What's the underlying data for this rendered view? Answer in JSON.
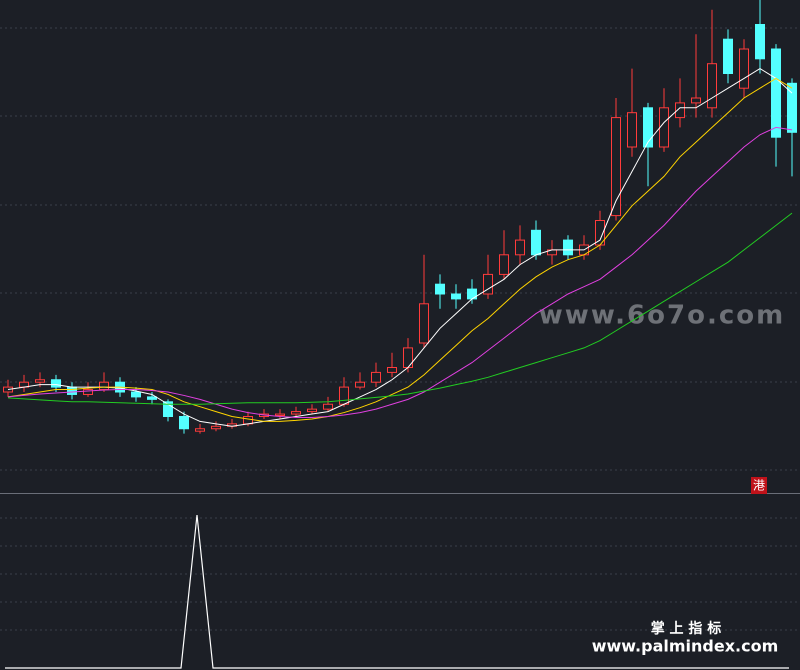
{
  "chart_data": {
    "type": "candlestick",
    "categories": [
      null,
      null,
      null,
      null,
      null,
      null,
      null,
      null,
      null,
      null,
      null,
      null,
      null,
      null,
      null,
      null,
      null,
      null,
      null,
      null,
      null,
      null,
      null,
      null,
      null,
      null,
      null,
      null,
      null,
      null,
      null,
      null,
      null,
      null,
      null,
      null,
      null,
      null,
      null,
      null,
      null,
      null,
      null,
      null,
      null,
      null,
      null,
      null,
      null,
      null
    ],
    "open": [
      20,
      21,
      22,
      22.5,
      21,
      19.5,
      20.5,
      22,
      20,
      19,
      18,
      15,
      12,
      12.5,
      13,
      13.5,
      15,
      15.2,
      15.5,
      16,
      16.5,
      17.5,
      21,
      22,
      24,
      25,
      30,
      42,
      40,
      41,
      40,
      44,
      48,
      53,
      48,
      51,
      48,
      50,
      56,
      70,
      78,
      70,
      76,
      79,
      78,
      92,
      82,
      95,
      90,
      83
    ],
    "high": [
      22.5,
      23.5,
      24,
      23.5,
      22,
      22,
      24,
      23,
      21,
      20,
      18.5,
      16,
      13.5,
      14,
      14.5,
      16,
      16.5,
      16.5,
      17,
      17.5,
      19,
      23,
      24,
      26,
      28,
      31,
      48,
      44,
      42,
      43,
      48,
      53,
      54,
      55,
      51,
      52,
      52,
      57,
      80,
      86,
      79,
      82,
      84,
      93,
      98,
      94,
      92,
      100,
      91,
      84
    ],
    "low": [
      19,
      20,
      21,
      20,
      18.5,
      19,
      20,
      19,
      18,
      17.5,
      14,
      11.5,
      11.5,
      12,
      12.5,
      13,
      14.5,
      14.5,
      15,
      15.5,
      16,
      17,
      20.5,
      21,
      23,
      24,
      29,
      37,
      37,
      38,
      39,
      43,
      46,
      47,
      46,
      47,
      47,
      49,
      55,
      68,
      62,
      69,
      74,
      76,
      76,
      83,
      80,
      85,
      66,
      64
    ],
    "close": [
      21,
      22,
      22.5,
      21,
      19.5,
      20.5,
      22,
      20,
      19,
      18.5,
      15,
      12.5,
      12.5,
      13,
      13.5,
      15,
      15.5,
      15.5,
      16,
      16.5,
      17.5,
      21,
      22,
      24,
      25,
      29,
      38,
      40,
      39,
      39,
      44,
      48,
      51,
      48,
      49,
      48,
      50,
      55,
      76,
      77,
      70,
      78,
      79,
      80,
      87,
      85,
      90,
      88,
      72,
      73
    ],
    "up_color": "#ff3b3b",
    "down_color": "#54ffff",
    "ylim": [
      0,
      100
    ],
    "series": [
      {
        "color": "#ffffff",
        "values": [
          20.5,
          21,
          21.5,
          21.5,
          21,
          21,
          21,
          20.8,
          20.2,
          19.5,
          17.5,
          15.5,
          14,
          13.5,
          13,
          13.5,
          14,
          14.5,
          15,
          15.5,
          16,
          17.5,
          19,
          20.5,
          22.5,
          25,
          29,
          33,
          36,
          39,
          41,
          43,
          46,
          48,
          49,
          49,
          49,
          51,
          59,
          65,
          71,
          75,
          78,
          78,
          80,
          82,
          84,
          86,
          84,
          81
        ]
      },
      {
        "color": "#ffd400",
        "values": [
          19,
          19.5,
          20,
          20.5,
          20.5,
          20.8,
          21,
          21,
          20.8,
          20.5,
          19.5,
          18,
          17,
          16,
          15,
          14.5,
          14,
          14,
          14.2,
          14.5,
          15,
          15.8,
          16.8,
          18,
          19.5,
          21,
          23.5,
          26.5,
          29.5,
          32.5,
          35,
          38,
          41,
          43.5,
          45.5,
          47,
          48,
          50,
          54,
          58,
          61,
          64,
          68,
          71,
          74,
          77,
          80,
          82,
          84,
          82
        ]
      },
      {
        "color": "#e040e0",
        "values": [
          19,
          19.3,
          19.6,
          19.8,
          20,
          20.2,
          20.4,
          20.5,
          20.5,
          20.3,
          20,
          19.3,
          18.5,
          17.5,
          16.5,
          15.8,
          15.3,
          15,
          14.8,
          14.8,
          15,
          15.3,
          15.8,
          16.5,
          17.5,
          18.5,
          20,
          22,
          24,
          26,
          28.5,
          31,
          33.5,
          36,
          38,
          40,
          41.5,
          43,
          45.5,
          48,
          51,
          54,
          57.5,
          61,
          64,
          67,
          70,
          72.5,
          74,
          73.5
        ]
      },
      {
        "color": "#22cc22",
        "values": [
          18.8,
          18.6,
          18.4,
          18.2,
          18,
          18,
          17.9,
          17.8,
          17.7,
          17.6,
          17.5,
          17.5,
          17.5,
          17.6,
          17.7,
          17.8,
          17.8,
          17.8,
          17.8,
          17.9,
          18,
          18.3,
          18.6,
          18.9,
          19.2,
          19.6,
          20.2,
          20.8,
          21.5,
          22.2,
          23,
          24,
          25,
          26,
          27,
          28,
          29,
          30.5,
          32.5,
          34.5,
          36.5,
          38.5,
          40.5,
          42.5,
          44.5,
          46.5,
          49,
          51.5,
          54,
          56.5
        ]
      }
    ],
    "indicator": {
      "color": "#ffffff",
      "ylim": [
        0,
        1
      ],
      "values": [
        0,
        0,
        0,
        0,
        0,
        0,
        0,
        0,
        0,
        0,
        0,
        0,
        1,
        0,
        0,
        0,
        0,
        0,
        0,
        0,
        0,
        0,
        0,
        0,
        0,
        0,
        0,
        0,
        0,
        0,
        0,
        0,
        0,
        0,
        0,
        0,
        0,
        0,
        0,
        0,
        0,
        0,
        0,
        0,
        0,
        0,
        0,
        0,
        0,
        0
      ]
    }
  },
  "watermark": "www.6o7o.com",
  "badge": "港",
  "footer": {
    "title": "掌 上 指 标",
    "url": "www.palmindex.com"
  }
}
